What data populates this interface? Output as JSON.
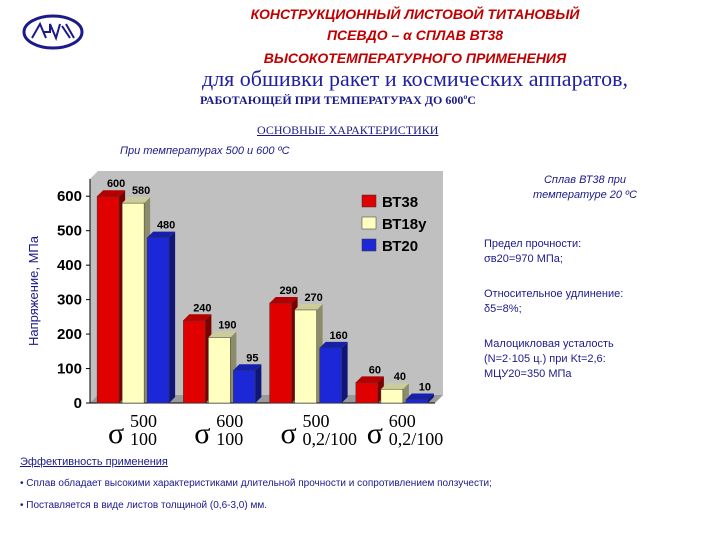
{
  "header": {
    "line1": "КОНСТРУКЦИОННЫЙ ЛИСТОВОЙ ТИТАНОВЫЙ",
    "line2": "ПСЕВДО – α СПЛАВ ВТ38",
    "line3": "ВЫСОКОТЕМПЕРАТУРНОГО ПРИМЕНЕНИЯ",
    "line4": "для обшивки ракет и космических аппаратов,",
    "line5": "РАБОТАЮЩЕЙ ПРИ ТЕМПЕРАТУРАХ ДО 600ºС"
  },
  "section": {
    "title": "ОСНОВНЫЕ ХАРАКТЕРИСТИКИ",
    "subtitle": "При температурах 500 и 600 ºС"
  },
  "chart_data": {
    "type": "bar",
    "ylabel": "Напряжение, МПа",
    "ylim": [
      0,
      650
    ],
    "yticks": [
      0,
      100,
      200,
      300,
      400,
      500,
      600
    ],
    "categories": [
      {
        "sym": "σ",
        "top": "500",
        "bottom": "100"
      },
      {
        "sym": "σ",
        "top": "600",
        "bottom": "100"
      },
      {
        "sym": "σ",
        "top": "500",
        "bottom": "0,2/100"
      },
      {
        "sym": "σ",
        "top": "600",
        "bottom": "0,2/100"
      }
    ],
    "series": [
      {
        "name": "ВТ38",
        "color": "#e00000",
        "values": [
          600,
          240,
          290,
          60
        ]
      },
      {
        "name": "ВТ18у",
        "color": "#ffffc0",
        "values": [
          580,
          190,
          270,
          40
        ]
      },
      {
        "name": "ВТ20",
        "color": "#1c28d8",
        "values": [
          480,
          95,
          160,
          10
        ]
      }
    ],
    "legend": "top-right",
    "background": "#c0c0c0"
  },
  "right": {
    "head": "Сплав ВТ38 при температуре 20 ºС",
    "strength_label": "Предел прочности:",
    "strength_value": "σв20=970 МПа;",
    "elong_label": "Относительное удлинение:",
    "elong_value": "δ5=8%;",
    "fatigue_label": "Малоцикловая усталость",
    "fatigue_cond": "(N=2·105 ц.) при Kt=2,6:",
    "fatigue_value": "МЦУ20=350 МПа"
  },
  "footer": {
    "eff_title": "Эффективность применения",
    "bullet1": "• Сплав обладает высокими характеристиками длительной прочности и сопротивлением ползучести;",
    "bullet2": "• Поставляется в виде листов толщиной (0,6-3,0) мм."
  }
}
